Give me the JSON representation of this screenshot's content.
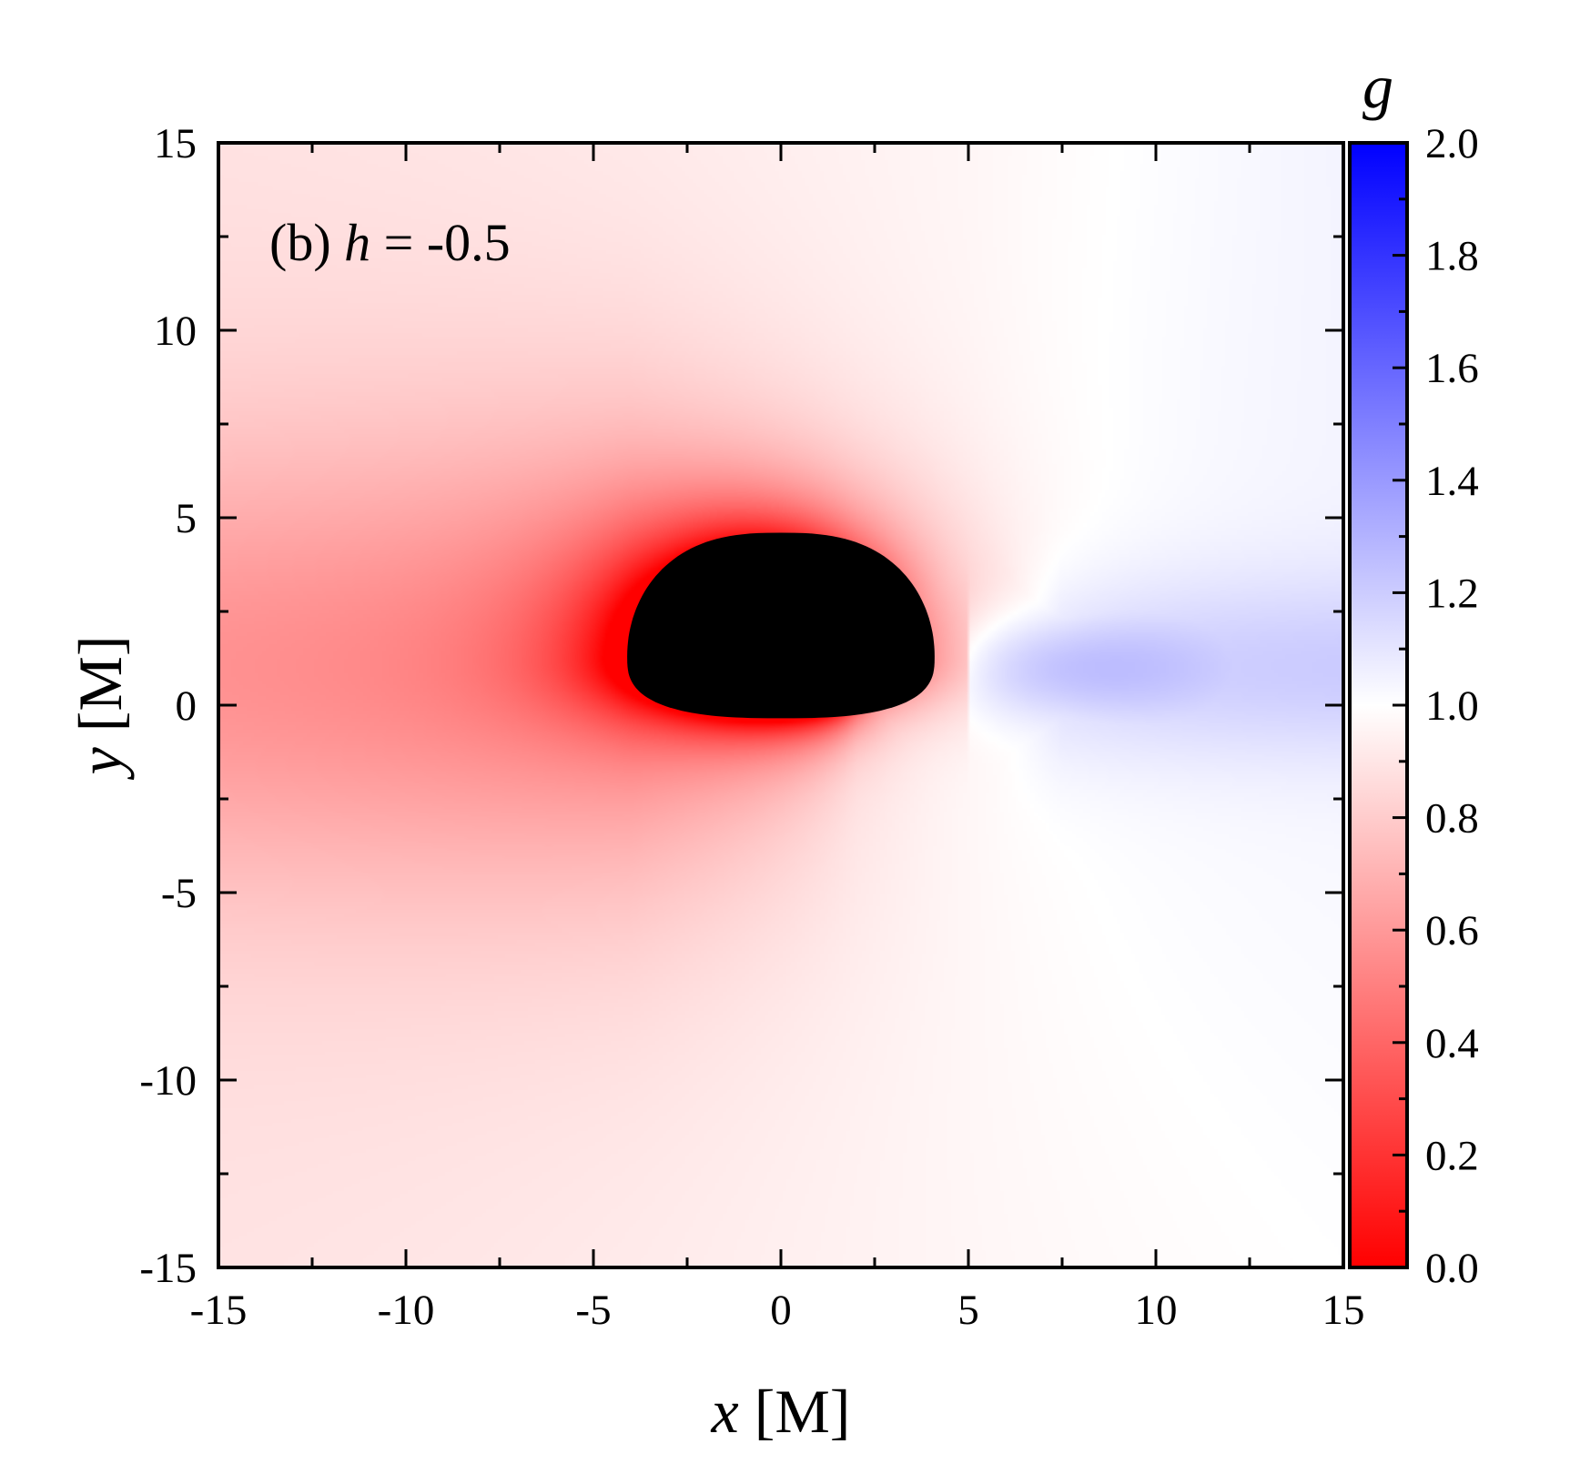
{
  "chart_data": {
    "type": "heatmap",
    "panel_label": "(b)",
    "annotation": {
      "prefix": "(b) ",
      "var": "h",
      "rest": " = -0.5"
    },
    "xlabel": {
      "var": "x",
      "unit": " [M]"
    },
    "ylabel": {
      "var": "y",
      "unit": " [M]"
    },
    "xlim": [
      -15,
      15
    ],
    "ylim": [
      -15,
      15
    ],
    "xticks": [
      -15,
      -10,
      -5,
      0,
      5,
      10,
      15
    ],
    "yticks": [
      -15,
      -10,
      -5,
      0,
      5,
      10,
      15
    ],
    "xtick_labels": [
      "-15",
      "-10",
      "-5",
      "0",
      "5",
      "10",
      "15"
    ],
    "ytick_labels": [
      "-15",
      "-10",
      "-5",
      "0",
      "5",
      "10",
      "15"
    ],
    "colorbar": {
      "label": "g",
      "range": [
        0.0,
        2.0
      ],
      "ticks": [
        0.0,
        0.2,
        0.4,
        0.6,
        0.8,
        1.0,
        1.2,
        1.4,
        1.6,
        1.8,
        2.0
      ],
      "tick_labels": [
        "0.0",
        "0.2",
        "0.4",
        "0.6",
        "0.8",
        "1.0",
        "1.2",
        "1.4",
        "1.6",
        "1.8",
        "2.0"
      ],
      "colors": {
        "low": "#ff0000",
        "mid": "#ffffff",
        "high": "#0000ff"
      }
    },
    "shadow": {
      "color": "#000000",
      "x_range": [
        -4.1,
        4.1
      ],
      "y_range": [
        -0.35,
        4.6
      ],
      "center": [
        0,
        1.3
      ]
    },
    "field_features": {
      "min_g_region": "near the shadow edge",
      "max_g_point": [
        7.5,
        1.0
      ],
      "max_g_value": 1.28
    }
  }
}
